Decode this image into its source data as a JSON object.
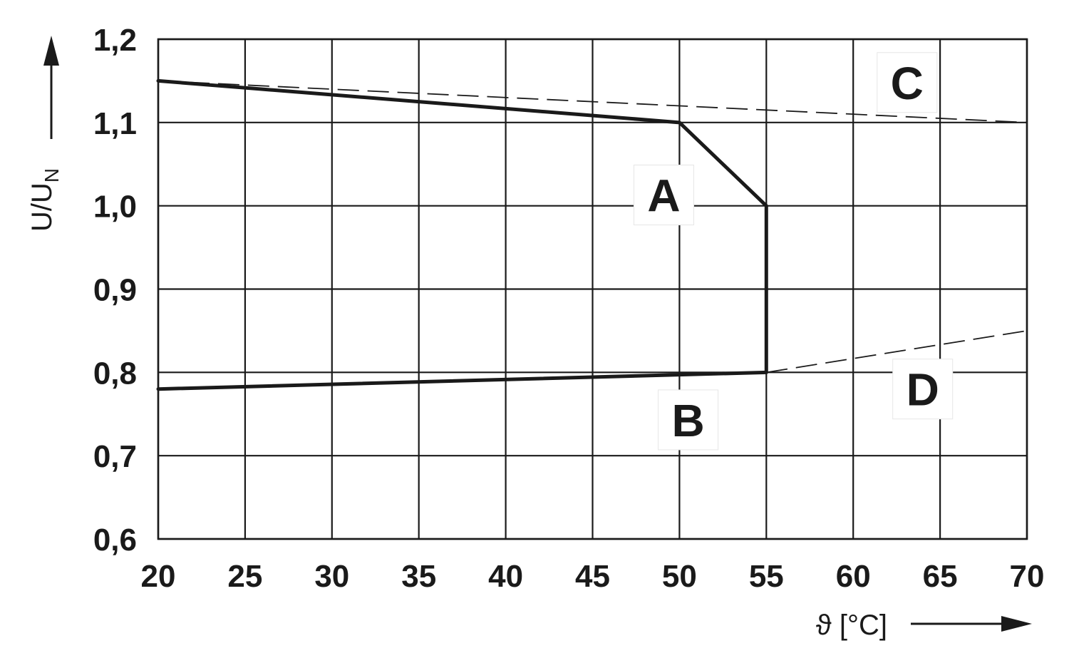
{
  "chart_data": {
    "type": "line",
    "xlabel": "ϑ [°C]",
    "ylabel": "U/U",
    "ylabel_subscript": "N",
    "xlim": [
      20,
      70
    ],
    "ylim": [
      0.6,
      1.2
    ],
    "x_ticks": [
      20,
      25,
      30,
      35,
      40,
      45,
      50,
      55,
      60,
      65,
      70
    ],
    "x_tick_labels": [
      "20",
      "25",
      "30",
      "35",
      "40",
      "45",
      "50",
      "55",
      "60",
      "65",
      "70"
    ],
    "y_ticks": [
      0.6,
      0.7,
      0.8,
      0.9,
      1.0,
      1.1,
      1.2
    ],
    "y_tick_labels": [
      "0,6",
      "0,7",
      "0,8",
      "0,9",
      "1,0",
      "1,1",
      "1,2"
    ],
    "grid": true,
    "series": [
      {
        "style": "solid",
        "points": [
          [
            20,
            1.15
          ],
          [
            50,
            1.1
          ],
          [
            55,
            1.0
          ],
          [
            55,
            0.8
          ]
        ]
      },
      {
        "style": "solid",
        "points": [
          [
            20,
            0.78
          ],
          [
            55,
            0.8
          ]
        ]
      },
      {
        "style": "dashed",
        "points": [
          [
            20,
            1.15
          ],
          [
            70,
            1.1
          ]
        ]
      },
      {
        "style": "dashed",
        "points": [
          [
            55,
            0.8
          ],
          [
            70,
            0.85
          ]
        ]
      }
    ],
    "annotations": [
      {
        "text": "A",
        "x": 49.1,
        "y": 1.013
      },
      {
        "text": "B",
        "x": 50.5,
        "y": 0.743
      },
      {
        "text": "C",
        "x": 63.1,
        "y": 1.148
      },
      {
        "text": "D",
        "x": 64.0,
        "y": 0.78
      }
    ],
    "colors": {
      "line": "#1a1a1a",
      "grid": "#1a1a1a",
      "background": "#ffffff"
    }
  }
}
